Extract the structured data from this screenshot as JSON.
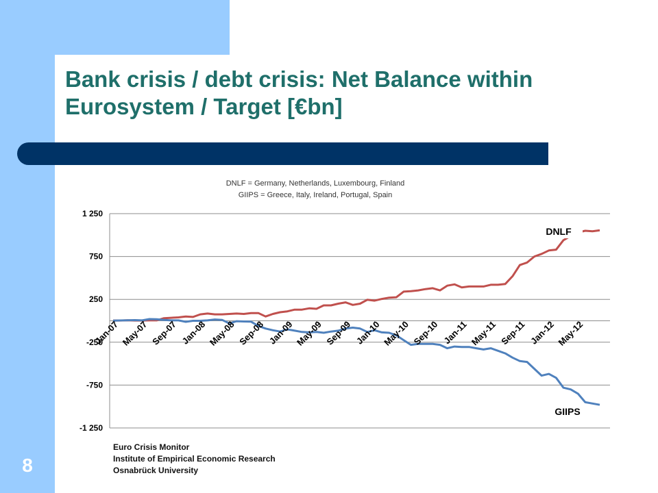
{
  "slide": {
    "title": "Bank crisis / debt crisis: Net Balance within Eurosystem / Target [€bn]",
    "number": "8",
    "footer_lines": [
      "Euro Crisis Monitor",
      "Institute of Empirical Economic Research",
      "Osnabrück University"
    ]
  },
  "colors": {
    "title": "#1f6f6a",
    "bar": "#003366",
    "side": "#99ccff",
    "dnlf": "#c0504d",
    "giips": "#4f81bd"
  },
  "chart_data": {
    "type": "line",
    "subtitle_lines": [
      "DNLF = Germany, Netherlands, Luxembourg, Finland",
      "GIIPS = Greece, Italy, Ireland, Portugal, Spain"
    ],
    "ylim": [
      -1250,
      1250
    ],
    "y_ticks": [
      1250,
      750,
      250,
      -250,
      -750,
      -1250
    ],
    "y_tick_labels": [
      "1 250",
      "750",
      "250",
      "-250",
      "-750",
      "-1 250"
    ],
    "x_tick_labels": [
      "Jan-07",
      "May-07",
      "Sep-07",
      "Jan-08",
      "May-08",
      "Sep-08",
      "Jan-09",
      "May-09",
      "Sep-09",
      "Jan-10",
      "May-10",
      "Sep-10",
      "Jan-11",
      "May-11",
      "Sep-11",
      "Jan-12",
      "May-12"
    ],
    "x_start": "Jan-07",
    "x_end": "Aug-12",
    "series": [
      {
        "name": "DNLF",
        "color": "#c0504d",
        "values": [
          3,
          3,
          6,
          3,
          3,
          5,
          5,
          30,
          35,
          40,
          50,
          45,
          75,
          85,
          75,
          75,
          80,
          85,
          80,
          90,
          90,
          50,
          80,
          100,
          110,
          130,
          130,
          145,
          140,
          180,
          180,
          200,
          215,
          185,
          200,
          245,
          235,
          255,
          270,
          275,
          340,
          345,
          355,
          370,
          380,
          355,
          410,
          425,
          390,
          400,
          400,
          400,
          420,
          420,
          430,
          520,
          650,
          680,
          750,
          780,
          820,
          830,
          940,
          990,
          1030,
          1050,
          1045,
          1055
        ]
      },
      {
        "name": "GIIPS",
        "color": "#4f81bd",
        "values": [
          2,
          4,
          6,
          8,
          5,
          20,
          18,
          10,
          5,
          5,
          -12,
          0,
          0,
          5,
          15,
          10,
          -30,
          -5,
          -8,
          -10,
          -60,
          -90,
          -110,
          -125,
          -100,
          -115,
          -130,
          -135,
          -130,
          -140,
          -125,
          -115,
          -90,
          -80,
          -90,
          -130,
          -110,
          -135,
          -140,
          -170,
          -225,
          -280,
          -270,
          -270,
          -270,
          -280,
          -320,
          -300,
          -305,
          -305,
          -320,
          -335,
          -320,
          -350,
          -380,
          -430,
          -470,
          -480,
          -560,
          -640,
          -620,
          -665,
          -780,
          -800,
          -850,
          -950,
          -965,
          -980
        ]
      }
    ],
    "annotations": [
      "DNLF",
      "GIIPS"
    ]
  }
}
